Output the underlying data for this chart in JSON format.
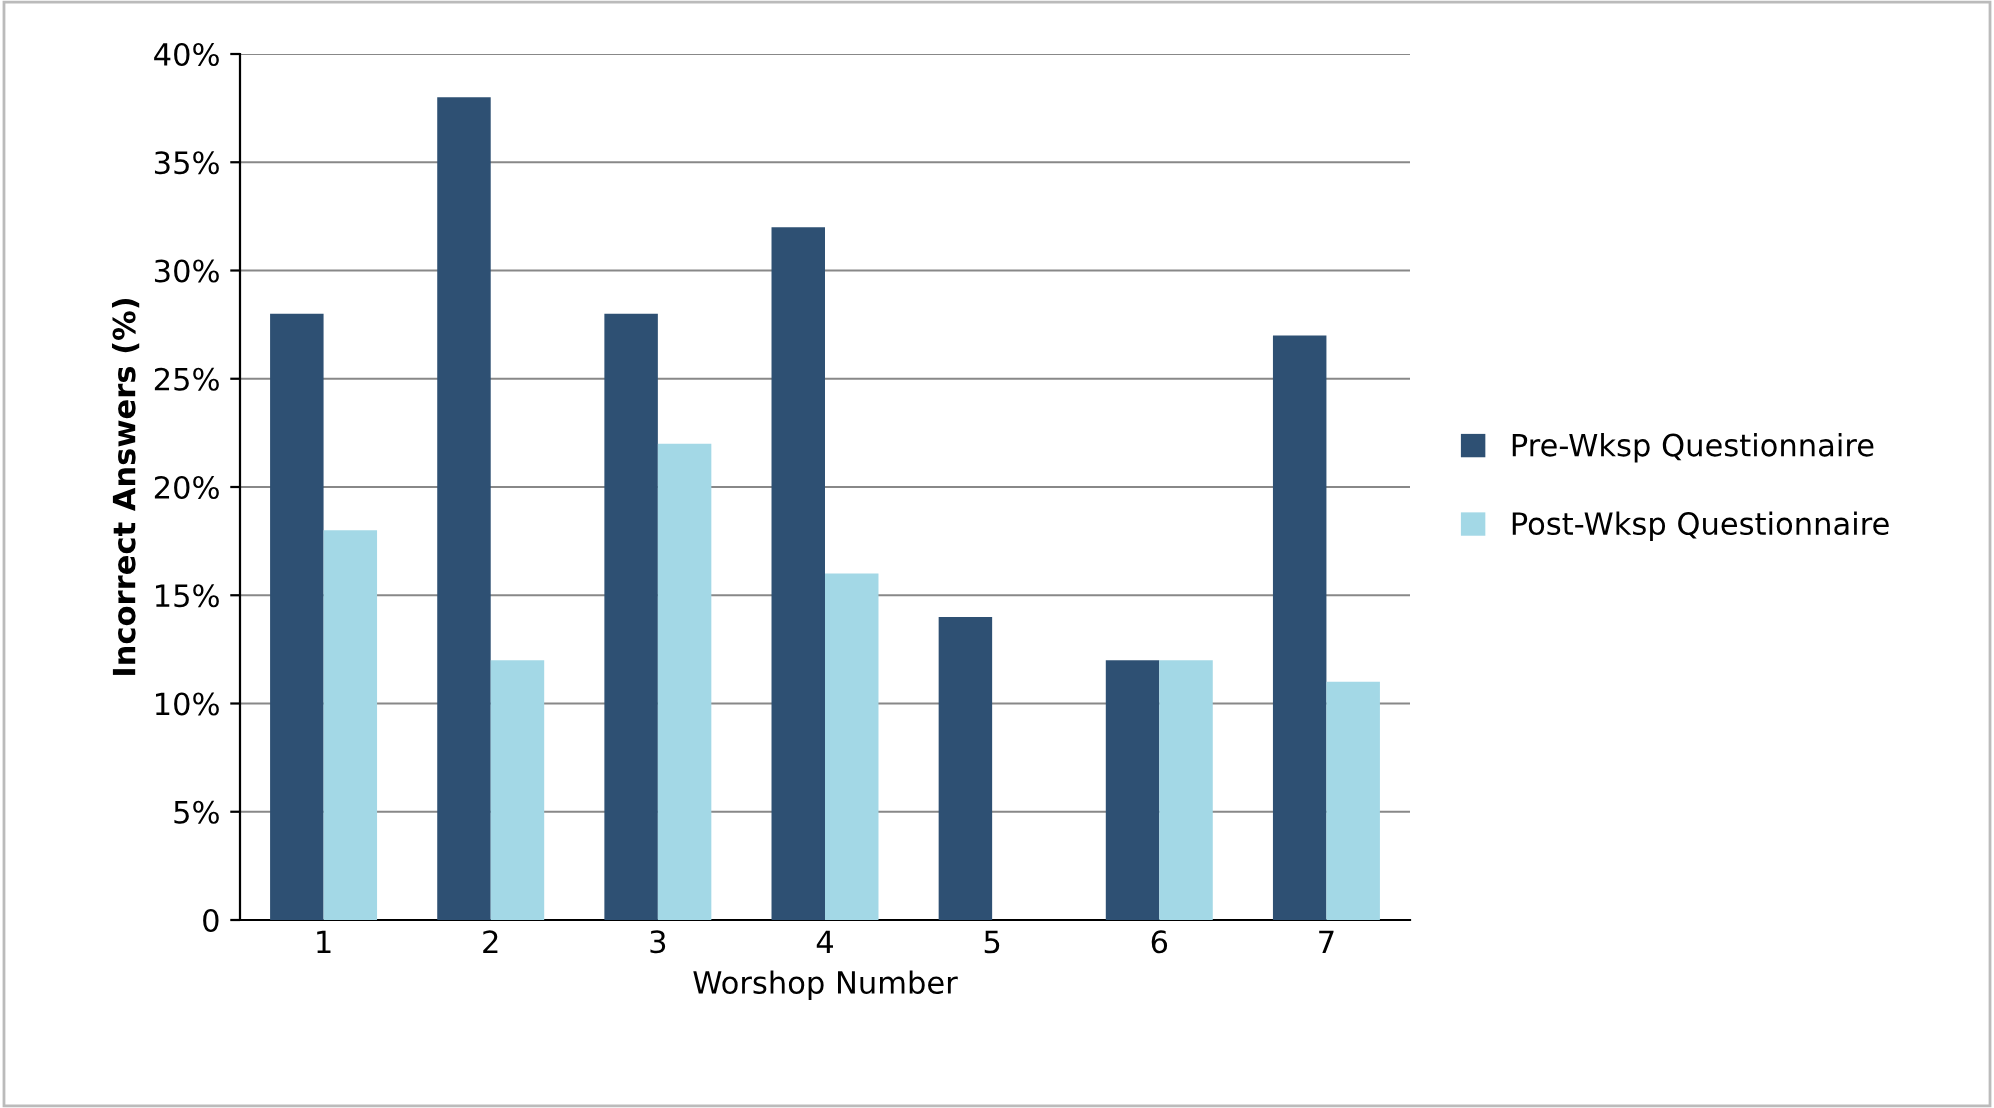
{
  "chart_data": {
    "type": "bar",
    "xlabel": "Worshop Number",
    "ylabel": "Incorrect Answers (%)",
    "categories": [
      "1",
      "2",
      "3",
      "4",
      "5",
      "6",
      "7"
    ],
    "series": [
      {
        "name": "Pre-Wksp Questionnaire",
        "color": "#2e5073",
        "values": [
          28,
          38,
          28,
          32,
          14,
          12,
          27
        ]
      },
      {
        "name": "Post-Wksp Questionnaire",
        "color": "#a3d8e6",
        "values": [
          18,
          12,
          22,
          16,
          null,
          12,
          11
        ]
      }
    ],
    "ylim": [
      0,
      40
    ],
    "yticks": [
      {
        "value": 0,
        "label": "0"
      },
      {
        "value": 5,
        "label": "5%"
      },
      {
        "value": 10,
        "label": "10%"
      },
      {
        "value": 15,
        "label": "15%"
      },
      {
        "value": 20,
        "label": "20%"
      },
      {
        "value": 25,
        "label": "25%"
      },
      {
        "value": 30,
        "label": "30%"
      },
      {
        "value": 35,
        "label": "35%"
      },
      {
        "value": 40,
        "label": "40%"
      }
    ],
    "grid": "y",
    "legend": "right"
  }
}
